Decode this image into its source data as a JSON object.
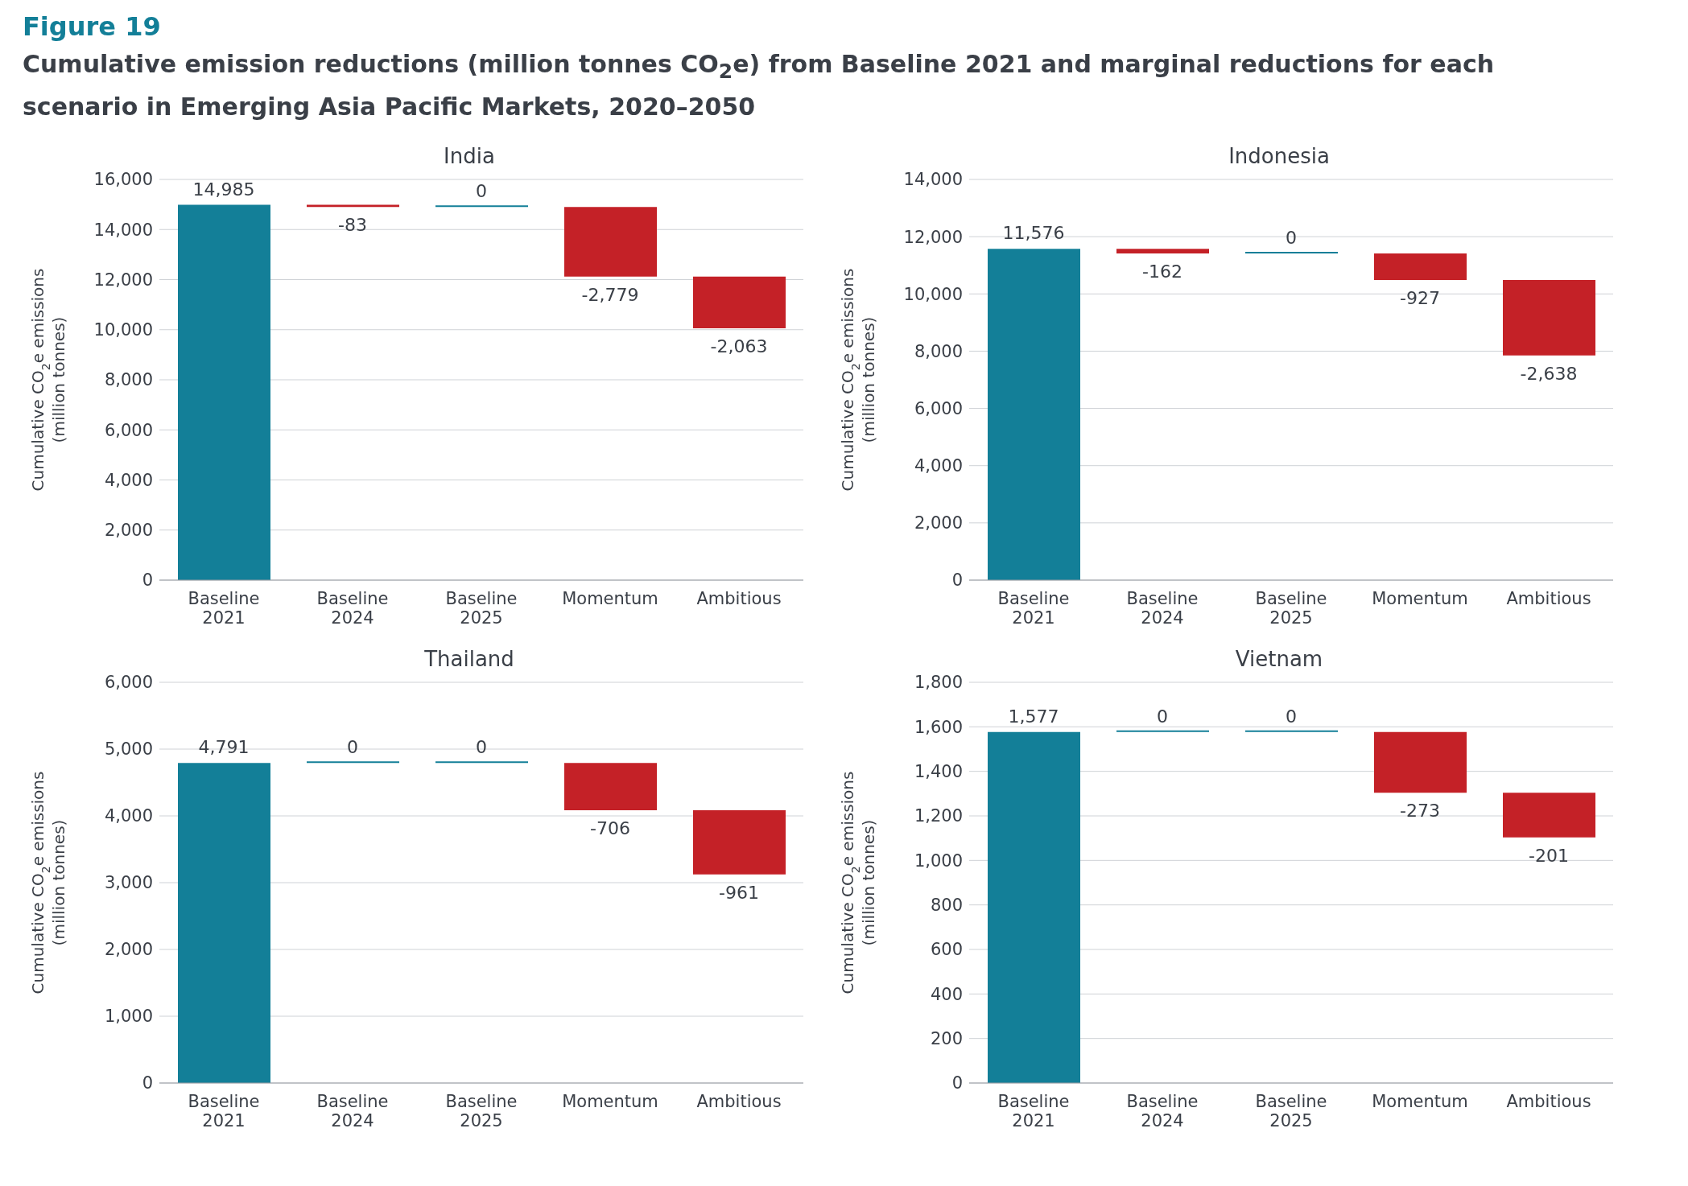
{
  "chart_data": [
    {
      "type": "bar",
      "annotations": [
        "Figure 19",
        "Cumulative emission reductions (million tonnes CO$_{2}$e) from Baseline 2021 and marginal reductions for each scenario in Emerging Asia Pacific Markets, 2020–2050"
      ],
      "title": "India",
      "ylabel": "Cumulative CO$_{2}$e emissions (million tonnes)",
      "categories": [
        "Baseline 2021",
        "Baseline 2024",
        "Baseline 2025",
        "Momentum",
        "Ambitious"
      ],
      "values": [
        14985,
        -83,
        0,
        -2779,
        -2063
      ],
      "base": [
        0,
        14985,
        14902,
        14902,
        12123
      ],
      "colors": [
        "#137f98",
        "#c42127",
        "#137f98",
        "#c42127",
        "#c42127"
      ],
      "value_labels": [
        "14,985",
        "-83",
        "0",
        "-2,779",
        "-2,063"
      ],
      "ylim": [
        0,
        16000
      ],
      "yticks": [
        0,
        {
          "value": 2000,
          "label": "2,000"
        },
        {
          "value": 4000,
          "label": "4,000"
        },
        {
          "value": 6000,
          "label": "6,000"
        },
        {
          "value": 8000,
          "label": "8,000"
        },
        {
          "value": 10000,
          "label": "10,000"
        },
        {
          "value": 12000,
          "label": "12,000"
        },
        {
          "value": 14000,
          "label": "14,000"
        },
        {
          "value": 16000,
          "label": "16,000"
        }
      ],
      "grid": "y",
      "legend": false
    },
    {
      "type": "bar",
      "title": "Indonesia",
      "ylabel": "Cumulative CO$_{2}$e emissions (million tonnes)",
      "categories": [
        "Baseline 2021",
        "Baseline 2024",
        "Baseline 2025",
        "Momentum",
        "Ambitious"
      ],
      "values": [
        11576,
        -162,
        0,
        -927,
        -2638
      ],
      "base": [
        0,
        11576,
        11414,
        11414,
        10487
      ],
      "colors": [
        "#137f98",
        "#c42127",
        "#137f98",
        "#c42127",
        "#c42127"
      ],
      "value_labels": [
        "11,576",
        "-162",
        "0",
        "-927",
        "-2,638"
      ],
      "ylim": [
        0,
        14000
      ],
      "yticks": [
        0,
        {
          "value": 2000,
          "label": "2,000"
        },
        {
          "value": 4000,
          "label": "4,000"
        },
        {
          "value": 6000,
          "label": "6,000"
        },
        {
          "value": 8000,
          "label": "8,000"
        },
        {
          "value": 10000,
          "label": "10,000"
        },
        {
          "value": 12000,
          "label": "12,000"
        },
        {
          "value": 14000,
          "label": "14,000"
        }
      ],
      "grid": "y",
      "legend": false
    },
    {
      "type": "bar",
      "title": "Thailand",
      "ylabel": "Cumulative CO$_{2}$e emissions (million tonnes)",
      "categories": [
        "Baseline 2021",
        "Baseline 2024",
        "Baseline 2025",
        "Momentum",
        "Ambitious"
      ],
      "values": [
        4791,
        0,
        0,
        -706,
        -961
      ],
      "base": [
        0,
        4791,
        4791,
        4791,
        4085
      ],
      "colors": [
        "#137f98",
        "#137f98",
        "#137f98",
        "#c42127",
        "#c42127"
      ],
      "value_labels": [
        "4,791",
        "0",
        "0",
        "-706",
        "-961"
      ],
      "ylim": [
        0,
        6000
      ],
      "yticks": [
        0,
        {
          "value": 1000,
          "label": "1,000"
        },
        {
          "value": 2000,
          "label": "2,000"
        },
        {
          "value": 3000,
          "label": "3,000"
        },
        {
          "value": 4000,
          "label": "4,000"
        },
        {
          "value": 5000,
          "label": "5,000"
        },
        {
          "value": 6000,
          "label": "6,000"
        }
      ],
      "grid": "y",
      "legend": false
    },
    {
      "type": "bar",
      "title": "Vietnam",
      "ylabel": "Cumulative CO$_{2}$e emissions (million tonnes)",
      "categories": [
        "Baseline 2021",
        "Baseline 2024",
        "Baseline 2025",
        "Momentum",
        "Ambitious"
      ],
      "values": [
        1577,
        0,
        0,
        -273,
        -201
      ],
      "base": [
        0,
        1577,
        1577,
        1577,
        1304
      ],
      "colors": [
        "#137f98",
        "#137f98",
        "#137f98",
        "#c42127",
        "#c42127"
      ],
      "value_labels": [
        "1,577",
        "0",
        "0",
        "-273",
        "-201"
      ],
      "ylim": [
        0,
        1800
      ],
      "yticks": [
        0,
        200,
        400,
        600,
        800,
        {
          "value": 1000,
          "label": "1,000"
        },
        {
          "value": 1200,
          "label": "1,200"
        },
        {
          "value": 1400,
          "label": "1,400"
        },
        {
          "value": 1600,
          "label": "1,600"
        },
        {
          "value": 1800,
          "label": "1,800"
        }
      ],
      "grid": "y",
      "legend": false
    }
  ]
}
